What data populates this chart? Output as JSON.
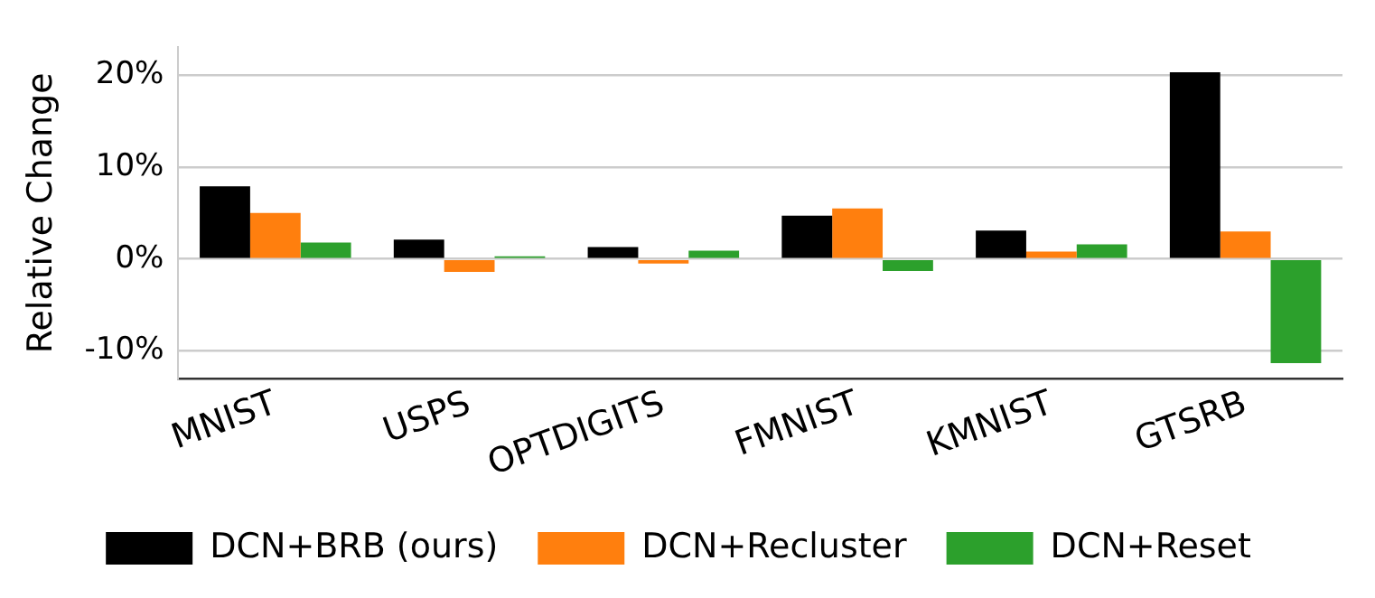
{
  "chart_data": {
    "type": "bar",
    "ylabel": "Relative Change",
    "categories": [
      "MNIST",
      "USPS",
      "OPTDIGITS",
      "FMNIST",
      "KMNIST",
      "GTSRB"
    ],
    "series": [
      {
        "name": "DCN+BRB (ours)",
        "color": "#000000",
        "values": [
          7.9,
          2.1,
          1.3,
          4.7,
          3.1,
          20.3
        ]
      },
      {
        "name": "DCN+Recluster",
        "color": "#ff7f0e",
        "values": [
          5.0,
          -1.4,
          -0.5,
          5.5,
          0.8,
          3.0
        ]
      },
      {
        "name": "DCN+Reset",
        "color": "#2ca02c",
        "values": [
          1.8,
          0.3,
          0.9,
          -1.3,
          1.6,
          -11.3
        ]
      }
    ],
    "ylim": [
      -13,
      23
    ],
    "yticks": [
      {
        "value": -10,
        "label": "-10%"
      },
      {
        "value": 0,
        "label": "0%"
      },
      {
        "value": 10,
        "label": "10%"
      },
      {
        "value": 20,
        "label": "20%"
      }
    ],
    "grid": "y",
    "legend": "bottom"
  }
}
